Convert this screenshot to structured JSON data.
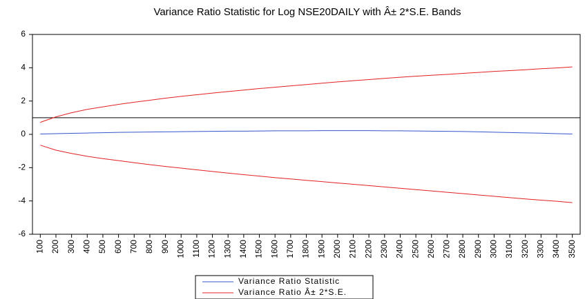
{
  "chart_data": {
    "type": "line",
    "title": "Variance Ratio Statistic for Log NSE20DAILY with Â± 2*S.E. Bands",
    "x": [
      100,
      200,
      300,
      400,
      500,
      600,
      700,
      800,
      900,
      1000,
      1100,
      1200,
      1300,
      1400,
      1500,
      1600,
      1700,
      1800,
      1900,
      2000,
      2100,
      2200,
      2300,
      2400,
      2500,
      2600,
      2700,
      2800,
      2900,
      3000,
      3100,
      3200,
      3300,
      3400,
      3500
    ],
    "xlim": [
      50,
      3550
    ],
    "ylim": [
      -6,
      6
    ],
    "yticks": [
      -6,
      -4,
      -2,
      0,
      2,
      4,
      6
    ],
    "reference_line": 1,
    "series": [
      {
        "name": "Variance Ratio Statistic",
        "color": "#3355cc",
        "values": [
          0.02,
          0.04,
          0.06,
          0.08,
          0.1,
          0.12,
          0.13,
          0.14,
          0.15,
          0.16,
          0.17,
          0.18,
          0.19,
          0.19,
          0.2,
          0.21,
          0.21,
          0.21,
          0.22,
          0.22,
          0.22,
          0.22,
          0.21,
          0.21,
          0.2,
          0.19,
          0.18,
          0.17,
          0.15,
          0.13,
          0.11,
          0.09,
          0.07,
          0.04,
          0.02
        ]
      },
      {
        "name": "Variance Ratio Â± 2*S.E.",
        "color": "#e02020",
        "upper": [
          0.72,
          1.05,
          1.3,
          1.5,
          1.65,
          1.8,
          1.93,
          2.05,
          2.17,
          2.28,
          2.38,
          2.48,
          2.57,
          2.66,
          2.75,
          2.83,
          2.91,
          2.99,
          3.07,
          3.15,
          3.22,
          3.29,
          3.36,
          3.43,
          3.49,
          3.55,
          3.6,
          3.66,
          3.72,
          3.78,
          3.83,
          3.88,
          3.94,
          3.99,
          4.05
        ],
        "lower": [
          -0.65,
          -0.95,
          -1.15,
          -1.32,
          -1.46,
          -1.58,
          -1.7,
          -1.82,
          -1.93,
          -2.03,
          -2.13,
          -2.23,
          -2.33,
          -2.42,
          -2.51,
          -2.6,
          -2.68,
          -2.76,
          -2.84,
          -2.92,
          -3.0,
          -3.08,
          -3.16,
          -3.24,
          -3.32,
          -3.4,
          -3.48,
          -3.56,
          -3.64,
          -3.72,
          -3.8,
          -3.88,
          -3.95,
          -4.02,
          -4.1
        ]
      }
    ]
  }
}
